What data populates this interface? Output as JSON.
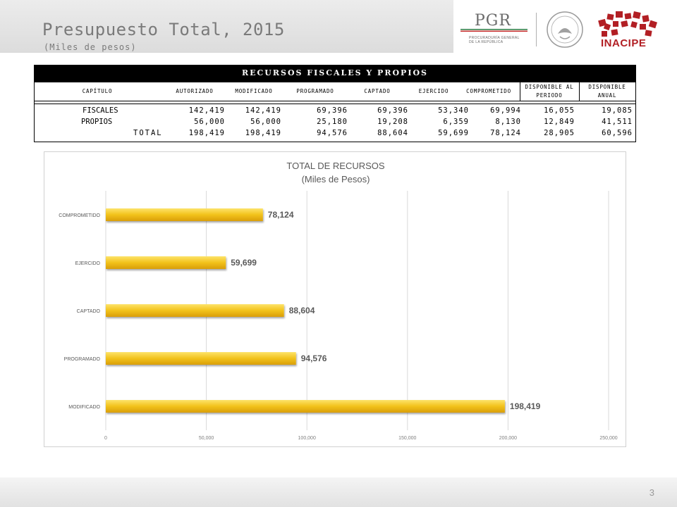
{
  "header": {
    "title": "Presupuesto Total, 2015",
    "subtitle": "(Miles de pesos)"
  },
  "logos": {
    "pgr": "PGR",
    "pgr_sub": "PROCURADURÍA GENERAL DE LA REPÚBLICA",
    "inacipe": "INACIPE",
    "brand_red": "#b21f24"
  },
  "table": {
    "title": "RECURSOS FISCALES Y PROPIOS",
    "columns": [
      "CAPÍTULO",
      "AUTORIZADO",
      "MODIFICADO",
      "PROGRAMADO",
      "CAPTADO",
      "EJERCIDO",
      "COMPROMETIDO",
      "DISPONIBLE AL PERIODO",
      "DISPONIBLE ANUAL"
    ],
    "rows": [
      {
        "label": "FISCALES",
        "values": [
          "142,419",
          "142,419",
          "69,396",
          "69,396",
          "53,340",
          "69,994",
          "16,055",
          "19,085"
        ]
      },
      {
        "label": "PROPIOS",
        "values": [
          "56,000",
          "56,000",
          "25,180",
          "19,208",
          "6,359",
          "8,130",
          "12,849",
          "41,511"
        ]
      },
      {
        "label": "TOTAL",
        "values": [
          "198,419",
          "198,419",
          "94,576",
          "88,604",
          "59,699",
          "78,124",
          "28,905",
          "60,596"
        ]
      }
    ]
  },
  "chart_data": {
    "type": "bar",
    "orientation": "horizontal",
    "title": "TOTAL DE RECURSOS",
    "subtitle": "(Miles de Pesos)",
    "categories": [
      "COMPROMETIDO",
      "EJERCIDO",
      "CAPTADO",
      "PROGRAMADO",
      "MODIFICADO"
    ],
    "values": [
      78124,
      59699,
      88604,
      94576,
      198419
    ],
    "value_labels": [
      "78,124",
      "59,699",
      "88,604",
      "94,576",
      "198,419"
    ],
    "xlim": [
      0,
      250000
    ],
    "xticks": [
      0,
      50000,
      100000,
      150000,
      200000,
      250000
    ],
    "xtick_labels": [
      "0",
      "50,000",
      "100,000",
      "150,000",
      "200,000",
      "250,000"
    ],
    "grid": true,
    "bar_color": "#f2c21b"
  },
  "footer": {
    "page_number": "3"
  }
}
